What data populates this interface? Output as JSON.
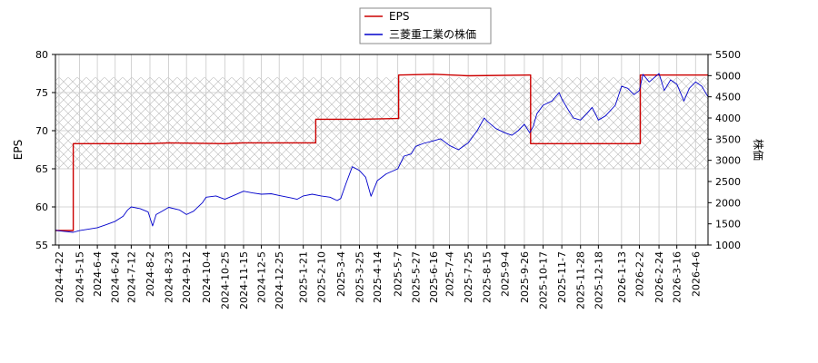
{
  "chart_data": {
    "type": "line",
    "legend": {
      "placement": "top-center",
      "items": [
        "EPS",
        "三菱重工業の株価"
      ]
    },
    "grid": true,
    "left_axis": {
      "label": "EPS",
      "range": [
        55,
        80
      ],
      "ticks": [
        "55",
        "60",
        "65",
        "70",
        "75",
        "80"
      ]
    },
    "right_axis": {
      "label": "株価",
      "range": [
        1000,
        5500
      ],
      "ticks": [
        "1000",
        "1500",
        "2000",
        "2500",
        "3000",
        "3500",
        "4000",
        "4500",
        "5000",
        "5500"
      ]
    },
    "x_axis": {
      "range": [
        "2024-04-18",
        "2026-04-20"
      ],
      "ticks": [
        "2024-4-22",
        "2024-5-15",
        "2024-6-4",
        "2024-6-24",
        "2024-7-12",
        "2024-8-2",
        "2024-8-23",
        "2024-9-12",
        "2024-10-4",
        "2024-10-25",
        "2024-11-15",
        "2024-12-5",
        "2024-12-25",
        "2025-1-21",
        "2025-2-10",
        "2025-3-4",
        "2025-3-25",
        "2025-4-14",
        "2025-5-7",
        "2025-5-27",
        "2025-6-16",
        "2025-7-4",
        "2025-7-25",
        "2025-8-15",
        "2025-9-4",
        "2025-9-26",
        "2025-10-17",
        "2025-11-7",
        "2025-11-28",
        "2025-12-18",
        "2026-1-13",
        "2026-2-2",
        "2026-2-24",
        "2026-3-16",
        "2026-4-6"
      ]
    },
    "band": {
      "axis": "left",
      "range": [
        65,
        77
      ],
      "pattern": "crosshatch"
    },
    "series": [
      {
        "name": "EPS",
        "axis": "left",
        "color": "#cc0000",
        "step": true,
        "points": [
          [
            "2024-04-18",
            56.9
          ],
          [
            "2024-05-08",
            56.9
          ],
          [
            "2024-05-08",
            68.3
          ],
          [
            "2024-08-01",
            68.3
          ],
          [
            "2024-08-23",
            68.4
          ],
          [
            "2024-10-25",
            68.3
          ],
          [
            "2024-11-15",
            68.4
          ],
          [
            "2025-02-04",
            68.4
          ],
          [
            "2025-02-04",
            71.5
          ],
          [
            "2025-03-25",
            71.5
          ],
          [
            "2025-05-07",
            71.6
          ],
          [
            "2025-05-08",
            71.6
          ],
          [
            "2025-05-08",
            77.3
          ],
          [
            "2025-06-16",
            77.4
          ],
          [
            "2025-07-25",
            77.2
          ],
          [
            "2025-10-02",
            77.3
          ],
          [
            "2025-10-03",
            77.3
          ],
          [
            "2025-10-03",
            68.3
          ],
          [
            "2026-02-03",
            68.3
          ],
          [
            "2026-02-03",
            77.3
          ],
          [
            "2026-04-20",
            77.3
          ]
        ]
      },
      {
        "name": "三菱重工業の株価",
        "axis": "right",
        "color": "#0000cc",
        "points": [
          [
            "2024-04-18",
            1350
          ],
          [
            "2024-04-24",
            1330
          ],
          [
            "2024-05-08",
            1300
          ],
          [
            "2024-05-15",
            1340
          ],
          [
            "2024-05-24",
            1370
          ],
          [
            "2024-06-04",
            1410
          ],
          [
            "2024-06-14",
            1480
          ],
          [
            "2024-06-24",
            1560
          ],
          [
            "2024-07-03",
            1680
          ],
          [
            "2024-07-08",
            1830
          ],
          [
            "2024-07-12",
            1900
          ],
          [
            "2024-07-22",
            1860
          ],
          [
            "2024-07-31",
            1780
          ],
          [
            "2024-08-05",
            1450
          ],
          [
            "2024-08-09",
            1720
          ],
          [
            "2024-08-15",
            1790
          ],
          [
            "2024-08-23",
            1890
          ],
          [
            "2024-09-04",
            1830
          ],
          [
            "2024-09-12",
            1720
          ],
          [
            "2024-09-20",
            1800
          ],
          [
            "2024-09-30",
            2000
          ],
          [
            "2024-10-04",
            2130
          ],
          [
            "2024-10-15",
            2160
          ],
          [
            "2024-10-25",
            2080
          ],
          [
            "2024-11-05",
            2180
          ],
          [
            "2024-11-15",
            2270
          ],
          [
            "2024-11-25",
            2230
          ],
          [
            "2024-12-05",
            2200
          ],
          [
            "2024-12-16",
            2210
          ],
          [
            "2024-12-25",
            2170
          ],
          [
            "2025-01-08",
            2110
          ],
          [
            "2025-01-14",
            2080
          ],
          [
            "2025-01-21",
            2160
          ],
          [
            "2025-01-31",
            2200
          ],
          [
            "2025-02-10",
            2160
          ],
          [
            "2025-02-20",
            2130
          ],
          [
            "2025-02-28",
            2050
          ],
          [
            "2025-03-04",
            2100
          ],
          [
            "2025-03-10",
            2460
          ],
          [
            "2025-03-17",
            2850
          ],
          [
            "2025-03-25",
            2760
          ],
          [
            "2025-04-01",
            2600
          ],
          [
            "2025-04-07",
            2150
          ],
          [
            "2025-04-14",
            2520
          ],
          [
            "2025-04-24",
            2680
          ],
          [
            "2025-05-07",
            2800
          ],
          [
            "2025-05-14",
            3100
          ],
          [
            "2025-05-22",
            3150
          ],
          [
            "2025-05-27",
            3330
          ],
          [
            "2025-06-05",
            3400
          ],
          [
            "2025-06-16",
            3460
          ],
          [
            "2025-06-24",
            3510
          ],
          [
            "2025-07-04",
            3350
          ],
          [
            "2025-07-14",
            3250
          ],
          [
            "2025-07-25",
            3410
          ],
          [
            "2025-08-04",
            3700
          ],
          [
            "2025-08-12",
            4000
          ],
          [
            "2025-08-15",
            3930
          ],
          [
            "2025-08-25",
            3750
          ],
          [
            "2025-09-04",
            3650
          ],
          [
            "2025-09-12",
            3590
          ],
          [
            "2025-09-19",
            3700
          ],
          [
            "2025-09-26",
            3850
          ],
          [
            "2025-10-02",
            3650
          ],
          [
            "2025-10-06",
            3800
          ],
          [
            "2025-10-10",
            4100
          ],
          [
            "2025-10-17",
            4300
          ],
          [
            "2025-10-27",
            4400
          ],
          [
            "2025-11-04",
            4600
          ],
          [
            "2025-11-07",
            4450
          ],
          [
            "2025-11-14",
            4200
          ],
          [
            "2025-11-20",
            4000
          ],
          [
            "2025-11-28",
            3950
          ],
          [
            "2025-12-05",
            4100
          ],
          [
            "2025-12-11",
            4250
          ],
          [
            "2025-12-18",
            3950
          ],
          [
            "2025-12-26",
            4050
          ],
          [
            "2026-01-06",
            4300
          ],
          [
            "2026-01-13",
            4750
          ],
          [
            "2026-01-20",
            4700
          ],
          [
            "2026-01-27",
            4550
          ],
          [
            "2026-02-02",
            4650
          ],
          [
            "2026-02-06",
            5030
          ],
          [
            "2026-02-13",
            4850
          ],
          [
            "2026-02-24",
            5050
          ],
          [
            "2026-03-02",
            4650
          ],
          [
            "2026-03-09",
            4900
          ],
          [
            "2026-03-16",
            4800
          ],
          [
            "2026-03-24",
            4400
          ],
          [
            "2026-03-30",
            4700
          ],
          [
            "2026-04-06",
            4850
          ],
          [
            "2026-04-13",
            4750
          ],
          [
            "2026-04-20",
            4500
          ]
        ]
      }
    ]
  }
}
